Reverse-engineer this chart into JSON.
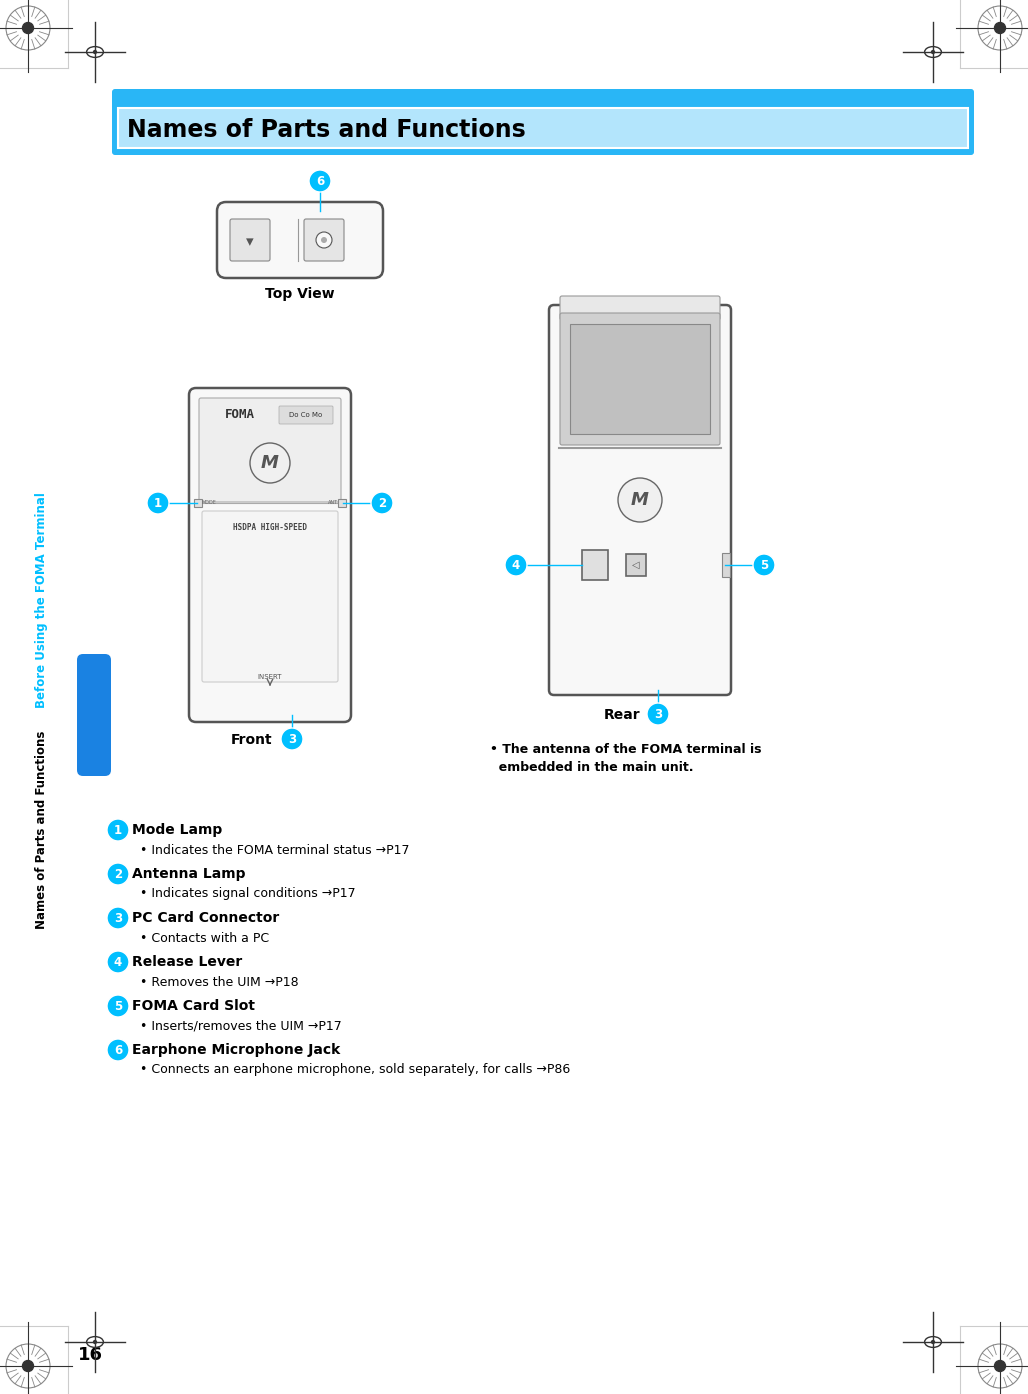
{
  "bg_color": "#ffffff",
  "header_bg_outer": "#29b6f6",
  "header_bg_inner": "#b3e5fc",
  "header_text": "Names of Parts and Functions",
  "header_text_color": "#000000",
  "cyan_color": "#00bfff",
  "side_text_top": "Before Using the FOMA Terminal",
  "side_text_bottom": "Names of Parts and Functions",
  "side_tab_color": "#1e90ff",
  "page_number": "16",
  "items": [
    {
      "num": "1",
      "title": "Mode Lamp",
      "desc": "Indicates the FOMA terminal status →P17"
    },
    {
      "num": "2",
      "title": "Antenna Lamp",
      "desc": "Indicates signal conditions →P17"
    },
    {
      "num": "3",
      "title": "PC Card Connector",
      "desc": "Contacts with a PC"
    },
    {
      "num": "4",
      "title": "Release Lever",
      "desc": "Removes the UIM →P18"
    },
    {
      "num": "5",
      "title": "FOMA Card Slot",
      "desc": "Inserts/removes the UIM →P17"
    },
    {
      "num": "6",
      "title": "Earphone Microphone Jack",
      "desc": "Connects an earphone microphone, sold separately, for calls →P86"
    }
  ],
  "antenna_note1": "• The antenna of the FOMA terminal is",
  "antenna_note2": "  embedded in the main unit.",
  "top_view_label": "Top View",
  "front_label": "Front",
  "rear_label": "Rear"
}
